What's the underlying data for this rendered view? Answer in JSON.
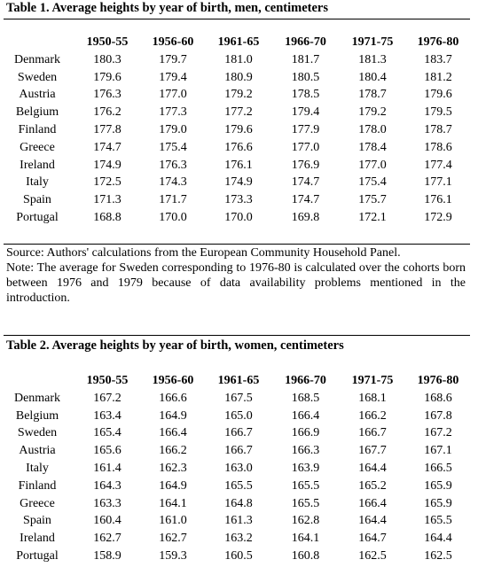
{
  "table1": {
    "title": "Table 1. Average heights by year of birth, men, centimeters",
    "columns": [
      "1950-55",
      "1956-60",
      "1961-65",
      "1966-70",
      "1971-75",
      "1976-80"
    ],
    "rows": [
      {
        "country": "Denmark",
        "values": [
          "180.3",
          "179.7",
          "181.0",
          "181.7",
          "181.3",
          "183.7"
        ]
      },
      {
        "country": "Sweden",
        "values": [
          "179.6",
          "179.4",
          "180.9",
          "180.5",
          "180.4",
          "181.2"
        ]
      },
      {
        "country": "Austria",
        "values": [
          "176.3",
          "177.0",
          "179.2",
          "178.5",
          "178.7",
          "179.6"
        ]
      },
      {
        "country": "Belgium",
        "values": [
          "176.2",
          "177.3",
          "177.2",
          "179.4",
          "179.2",
          "179.5"
        ]
      },
      {
        "country": "Finland",
        "values": [
          "177.8",
          "179.0",
          "179.6",
          "177.9",
          "178.0",
          "178.7"
        ]
      },
      {
        "country": "Greece",
        "values": [
          "174.7",
          "175.4",
          "176.6",
          "177.0",
          "178.4",
          "178.6"
        ]
      },
      {
        "country": "Ireland",
        "values": [
          "174.9",
          "176.3",
          "176.1",
          "176.9",
          "177.0",
          "177.4"
        ]
      },
      {
        "country": "Italy",
        "values": [
          "172.5",
          "174.3",
          "174.9",
          "174.7",
          "175.4",
          "177.1"
        ]
      },
      {
        "country": "Spain",
        "values": [
          "171.3",
          "171.7",
          "173.3",
          "174.7",
          "175.7",
          "176.1"
        ]
      },
      {
        "country": "Portugal",
        "values": [
          "168.8",
          "170.0",
          "170.0",
          "169.8",
          "172.1",
          "172.9"
        ]
      }
    ],
    "source": "Source: Authors' calculations from the European Community Household Panel.",
    "note": "Note: The average for Sweden corresponding to 1976-80 is calculated over the cohorts born between 1976 and 1979 because of data availability problems mentioned in the introduction."
  },
  "table2": {
    "title": "Table 2. Average heights by year of birth, women, centimeters",
    "columns": [
      "1950-55",
      "1956-60",
      "1961-65",
      "1966-70",
      "1971-75",
      "1976-80"
    ],
    "rows": [
      {
        "country": "Denmark",
        "values": [
          "167.2",
          "166.6",
          "167.5",
          "168.5",
          "168.1",
          "168.6"
        ]
      },
      {
        "country": "Belgium",
        "values": [
          "163.4",
          "164.9",
          "165.0",
          "166.4",
          "166.2",
          "167.8"
        ]
      },
      {
        "country": "Sweden",
        "values": [
          "165.4",
          "166.4",
          "166.7",
          "166.9",
          "166.7",
          "167.2"
        ]
      },
      {
        "country": "Austria",
        "values": [
          "165.6",
          "166.2",
          "166.7",
          "166.3",
          "167.7",
          "167.1"
        ]
      },
      {
        "country": "Italy",
        "values": [
          "161.4",
          "162.3",
          "163.0",
          "163.9",
          "164.4",
          "166.5"
        ]
      },
      {
        "country": "Finland",
        "values": [
          "164.3",
          "164.9",
          "165.5",
          "165.5",
          "165.2",
          "165.9"
        ]
      },
      {
        "country": "Greece",
        "values": [
          "163.3",
          "164.1",
          "164.8",
          "165.5",
          "166.4",
          "165.9"
        ]
      },
      {
        "country": "Spain",
        "values": [
          "160.4",
          "161.0",
          "161.3",
          "162.8",
          "164.4",
          "165.5"
        ]
      },
      {
        "country": "Ireland",
        "values": [
          "162.7",
          "162.7",
          "163.2",
          "164.1",
          "164.7",
          "164.4"
        ]
      },
      {
        "country": "Portugal",
        "values": [
          "158.9",
          "159.3",
          "160.5",
          "160.8",
          "162.5",
          "162.5"
        ]
      }
    ]
  }
}
